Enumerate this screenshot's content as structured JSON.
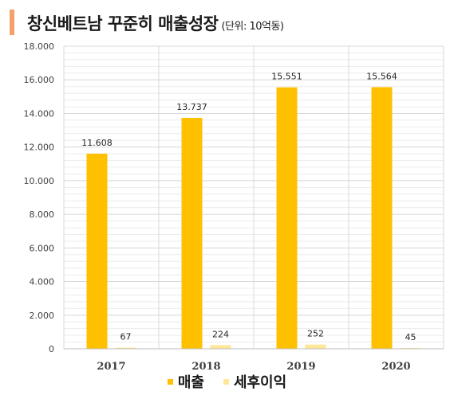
{
  "header": {
    "title": "창신베트남 꾸준히 매출성장",
    "unit": "(단위: 10억동)"
  },
  "colors": {
    "revenue": "#FFC000",
    "net_profit": "#FFE699",
    "grid": "#d9d9d9",
    "title_accent": "#F4A06A"
  },
  "chart_data": {
    "type": "bar",
    "categories": [
      "2017",
      "2018",
      "2019",
      "2020"
    ],
    "series": [
      {
        "name": "매출",
        "values": [
          11608,
          13737,
          15551,
          15564
        ],
        "labels": [
          "11.608",
          "13.737",
          "15.551",
          "15.564"
        ]
      },
      {
        "name": "세후이익",
        "values": [
          67,
          224,
          252,
          45
        ],
        "labels": [
          "67",
          "224",
          "252",
          "45"
        ]
      }
    ],
    "ylim": [
      0,
      18000
    ],
    "yticks": [
      "0",
      "2.000",
      "4.000",
      "6.000",
      "8.000",
      "10.000",
      "12.000",
      "14.000",
      "16.000",
      "18.000"
    ],
    "ytick_values": [
      0,
      2000,
      4000,
      6000,
      8000,
      10000,
      12000,
      14000,
      16000,
      18000
    ],
    "grid": true,
    "legend_position": "bottom"
  }
}
